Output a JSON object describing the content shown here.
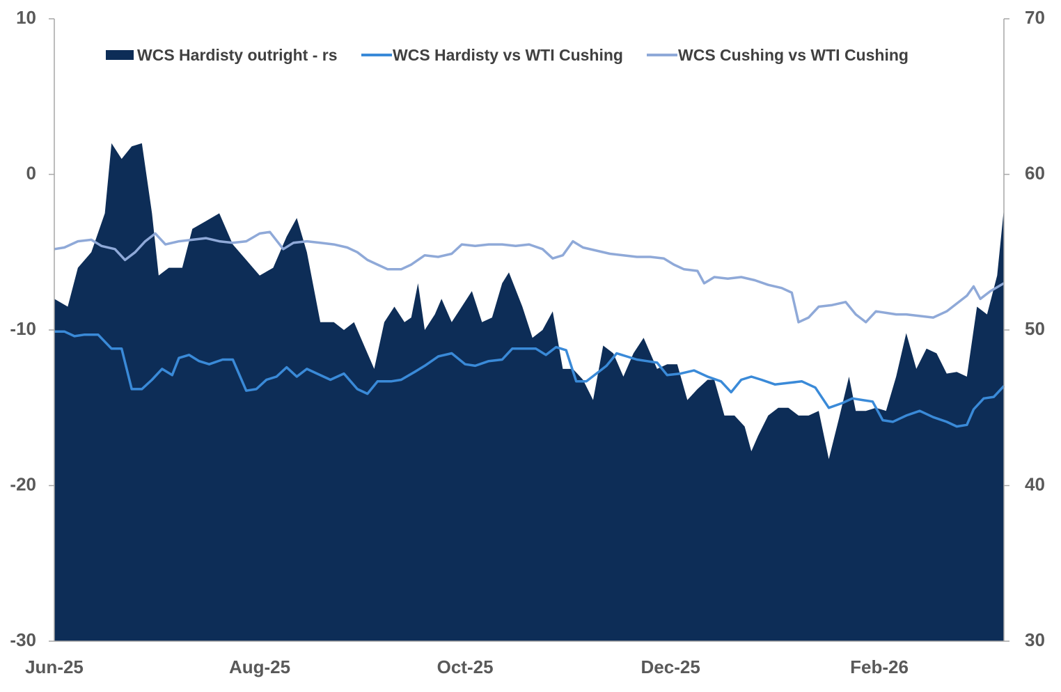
{
  "chart_data": {
    "type": "area+line",
    "legend_position": "top",
    "grid": false,
    "y_left": {
      "lim": [
        -30,
        10
      ],
      "ticks": [
        10,
        0,
        -10,
        -20,
        -30
      ]
    },
    "y_right": {
      "lim": [
        30,
        70
      ],
      "ticks": [
        70,
        60,
        50,
        40,
        30
      ]
    },
    "x_lim": [
      "2025-06-01",
      "2026-03-10"
    ],
    "x_ticks": [
      {
        "date": "2025-06-01",
        "label": "Jun-25"
      },
      {
        "date": "2025-08-01",
        "label": "Aug-25"
      },
      {
        "date": "2025-10-01",
        "label": "Oct-25"
      },
      {
        "date": "2025-12-01",
        "label": "Dec-25"
      },
      {
        "date": "2026-02-01",
        "label": "Feb-26"
      }
    ],
    "series": [
      {
        "name": "WCS Hardisty outright - rs",
        "kind": "area",
        "axis": "right",
        "color": "#0d2d57",
        "points": [
          [
            "2025-06-01",
            52
          ],
          [
            "2025-06-05",
            51.5
          ],
          [
            "2025-06-08",
            54
          ],
          [
            "2025-06-12",
            55
          ],
          [
            "2025-06-16",
            57.5
          ],
          [
            "2025-06-18",
            62
          ],
          [
            "2025-06-21",
            61
          ],
          [
            "2025-06-24",
            61.8
          ],
          [
            "2025-06-27",
            62
          ],
          [
            "2025-06-30",
            57.5
          ],
          [
            "2025-07-02",
            53.5
          ],
          [
            "2025-07-05",
            54
          ],
          [
            "2025-07-09",
            54
          ],
          [
            "2025-07-12",
            56.5
          ],
          [
            "2025-07-16",
            57
          ],
          [
            "2025-07-20",
            57.5
          ],
          [
            "2025-07-24",
            55.5
          ],
          [
            "2025-07-28",
            54.5
          ],
          [
            "2025-08-01",
            53.5
          ],
          [
            "2025-08-05",
            54
          ],
          [
            "2025-08-09",
            56
          ],
          [
            "2025-08-12",
            57.2
          ],
          [
            "2025-08-15",
            55
          ],
          [
            "2025-08-19",
            50.5
          ],
          [
            "2025-08-23",
            50.5
          ],
          [
            "2025-08-26",
            50
          ],
          [
            "2025-08-29",
            50.5
          ],
          [
            "2025-09-01",
            49
          ],
          [
            "2025-09-04",
            47.5
          ],
          [
            "2025-09-07",
            50.5
          ],
          [
            "2025-09-10",
            51.5
          ],
          [
            "2025-09-13",
            50.5
          ],
          [
            "2025-09-15",
            50.8
          ],
          [
            "2025-09-17",
            53
          ],
          [
            "2025-09-19",
            50
          ],
          [
            "2025-09-22",
            51
          ],
          [
            "2025-09-24",
            52
          ],
          [
            "2025-09-27",
            50.5
          ],
          [
            "2025-09-30",
            51.5
          ],
          [
            "2025-10-03",
            52.5
          ],
          [
            "2025-10-06",
            50.5
          ],
          [
            "2025-10-09",
            50.8
          ],
          [
            "2025-10-12",
            53
          ],
          [
            "2025-10-14",
            53.7
          ],
          [
            "2025-10-18",
            51.5
          ],
          [
            "2025-10-21",
            49.5
          ],
          [
            "2025-10-24",
            50
          ],
          [
            "2025-10-27",
            51.2
          ],
          [
            "2025-10-30",
            47.5
          ],
          [
            "2025-11-02",
            47.5
          ],
          [
            "2025-11-05",
            46.8
          ],
          [
            "2025-11-08",
            45.5
          ],
          [
            "2025-11-11",
            49
          ],
          [
            "2025-11-14",
            48.5
          ],
          [
            "2025-11-17",
            47
          ],
          [
            "2025-11-20",
            48.5
          ],
          [
            "2025-11-23",
            49.5
          ],
          [
            "2025-11-27",
            47.5
          ],
          [
            "2025-11-30",
            47.8
          ],
          [
            "2025-12-03",
            47.8
          ],
          [
            "2025-12-06",
            45.5
          ],
          [
            "2025-12-09",
            46.2
          ],
          [
            "2025-12-12",
            46.8
          ],
          [
            "2025-12-14",
            46.8
          ],
          [
            "2025-12-17",
            44.5
          ],
          [
            "2025-12-20",
            44.5
          ],
          [
            "2025-12-23",
            43.8
          ],
          [
            "2025-12-25",
            42.2
          ],
          [
            "2025-12-27",
            43.2
          ],
          [
            "2025-12-30",
            44.5
          ],
          [
            "2026-01-02",
            45
          ],
          [
            "2026-01-05",
            45
          ],
          [
            "2026-01-08",
            44.5
          ],
          [
            "2026-01-11",
            44.5
          ],
          [
            "2026-01-14",
            44.8
          ],
          [
            "2026-01-17",
            41.7
          ],
          [
            "2026-01-20",
            44.3
          ],
          [
            "2026-01-23",
            47
          ],
          [
            "2026-01-25",
            44.8
          ],
          [
            "2026-01-28",
            44.8
          ],
          [
            "2026-01-31",
            45
          ],
          [
            "2026-02-03",
            44.8
          ],
          [
            "2026-02-06",
            47
          ],
          [
            "2026-02-09",
            49.8
          ],
          [
            "2026-02-12",
            47.5
          ],
          [
            "2026-02-15",
            48.8
          ],
          [
            "2026-02-18",
            48.5
          ],
          [
            "2026-02-21",
            47.2
          ],
          [
            "2026-02-24",
            47.3
          ],
          [
            "2026-02-27",
            47
          ],
          [
            "2026-03-02",
            51.5
          ],
          [
            "2026-03-05",
            51
          ],
          [
            "2026-03-08",
            53.5
          ],
          [
            "2026-03-10",
            57.8
          ]
        ]
      },
      {
        "name": "WCS Hardisty vs WTI Cushing",
        "kind": "line",
        "axis": "left",
        "color": "#3a8ad8",
        "points": [
          [
            "2025-06-01",
            -10.1
          ],
          [
            "2025-06-04",
            -10.1
          ],
          [
            "2025-06-07",
            -10.4
          ],
          [
            "2025-06-10",
            -10.3
          ],
          [
            "2025-06-14",
            -10.3
          ],
          [
            "2025-06-18",
            -11.2
          ],
          [
            "2025-06-21",
            -11.2
          ],
          [
            "2025-06-24",
            -13.8
          ],
          [
            "2025-06-27",
            -13.8
          ],
          [
            "2025-06-30",
            -13.2
          ],
          [
            "2025-07-03",
            -12.5
          ],
          [
            "2025-07-06",
            -12.9
          ],
          [
            "2025-07-08",
            -11.8
          ],
          [
            "2025-07-11",
            -11.6
          ],
          [
            "2025-07-14",
            -12.0
          ],
          [
            "2025-07-17",
            -12.2
          ],
          [
            "2025-07-21",
            -11.9
          ],
          [
            "2025-07-24",
            -11.9
          ],
          [
            "2025-07-28",
            -13.9
          ],
          [
            "2025-07-31",
            -13.8
          ],
          [
            "2025-08-03",
            -13.2
          ],
          [
            "2025-08-06",
            -13.0
          ],
          [
            "2025-08-09",
            -12.4
          ],
          [
            "2025-08-12",
            -13.0
          ],
          [
            "2025-08-15",
            -12.5
          ],
          [
            "2025-08-18",
            -12.8
          ],
          [
            "2025-08-22",
            -13.2
          ],
          [
            "2025-08-26",
            -12.8
          ],
          [
            "2025-08-30",
            -13.8
          ],
          [
            "2025-09-02",
            -14.1
          ],
          [
            "2025-09-05",
            -13.3
          ],
          [
            "2025-09-09",
            -13.3
          ],
          [
            "2025-09-12",
            -13.2
          ],
          [
            "2025-09-16",
            -12.7
          ],
          [
            "2025-09-19",
            -12.3
          ],
          [
            "2025-09-23",
            -11.7
          ],
          [
            "2025-09-27",
            -11.5
          ],
          [
            "2025-10-01",
            -12.2
          ],
          [
            "2025-10-04",
            -12.3
          ],
          [
            "2025-10-08",
            -12.0
          ],
          [
            "2025-10-12",
            -11.9
          ],
          [
            "2025-10-15",
            -11.2
          ],
          [
            "2025-10-18",
            -11.2
          ],
          [
            "2025-10-22",
            -11.2
          ],
          [
            "2025-10-25",
            -11.6
          ],
          [
            "2025-10-28",
            -11.1
          ],
          [
            "2025-10-31",
            -11.3
          ],
          [
            "2025-11-03",
            -13.3
          ],
          [
            "2025-11-06",
            -13.3
          ],
          [
            "2025-11-09",
            -12.8
          ],
          [
            "2025-11-12",
            -12.3
          ],
          [
            "2025-11-15",
            -11.5
          ],
          [
            "2025-11-18",
            -11.7
          ],
          [
            "2025-11-21",
            -11.9
          ],
          [
            "2025-11-24",
            -12.0
          ],
          [
            "2025-11-27",
            -12.1
          ],
          [
            "2025-11-30",
            -12.9
          ],
          [
            "2025-12-04",
            -12.8
          ],
          [
            "2025-12-08",
            -12.6
          ],
          [
            "2025-12-12",
            -13.0
          ],
          [
            "2025-12-16",
            -13.3
          ],
          [
            "2025-12-19",
            -14.0
          ],
          [
            "2025-12-22",
            -13.2
          ],
          [
            "2025-12-25",
            -13.0
          ],
          [
            "2025-12-28",
            -13.2
          ],
          [
            "2026-01-01",
            -13.5
          ],
          [
            "2026-01-05",
            -13.4
          ],
          [
            "2026-01-09",
            -13.3
          ],
          [
            "2026-01-13",
            -13.7
          ],
          [
            "2026-01-17",
            -15.0
          ],
          [
            "2026-01-21",
            -14.7
          ],
          [
            "2026-01-24",
            -14.4
          ],
          [
            "2026-01-27",
            -14.5
          ],
          [
            "2026-01-30",
            -14.6
          ],
          [
            "2026-02-02",
            -15.8
          ],
          [
            "2026-02-05",
            -15.9
          ],
          [
            "2026-02-09",
            -15.5
          ],
          [
            "2026-02-13",
            -15.2
          ],
          [
            "2026-02-17",
            -15.6
          ],
          [
            "2026-02-21",
            -15.9
          ],
          [
            "2026-02-24",
            -16.2
          ],
          [
            "2026-02-27",
            -16.1
          ],
          [
            "2026-03-01",
            -15.1
          ],
          [
            "2026-03-04",
            -14.4
          ],
          [
            "2026-03-07",
            -14.3
          ],
          [
            "2026-03-10",
            -13.6
          ]
        ]
      },
      {
        "name": "WCS Cushing vs WTI Cushing",
        "kind": "line",
        "axis": "left",
        "color": "#8fa9d8",
        "points": [
          [
            "2025-06-01",
            -4.8
          ],
          [
            "2025-06-04",
            -4.7
          ],
          [
            "2025-06-08",
            -4.3
          ],
          [
            "2025-06-12",
            -4.2
          ],
          [
            "2025-06-15",
            -4.6
          ],
          [
            "2025-06-19",
            -4.8
          ],
          [
            "2025-06-22",
            -5.5
          ],
          [
            "2025-06-25",
            -5.0
          ],
          [
            "2025-06-28",
            -4.3
          ],
          [
            "2025-07-01",
            -3.8
          ],
          [
            "2025-07-04",
            -4.5
          ],
          [
            "2025-07-08",
            -4.3
          ],
          [
            "2025-07-12",
            -4.2
          ],
          [
            "2025-07-16",
            -4.1
          ],
          [
            "2025-07-20",
            -4.3
          ],
          [
            "2025-07-24",
            -4.4
          ],
          [
            "2025-07-28",
            -4.3
          ],
          [
            "2025-08-01",
            -3.8
          ],
          [
            "2025-08-04",
            -3.7
          ],
          [
            "2025-08-08",
            -4.8
          ],
          [
            "2025-08-11",
            -4.4
          ],
          [
            "2025-08-15",
            -4.3
          ],
          [
            "2025-08-19",
            -4.4
          ],
          [
            "2025-08-23",
            -4.5
          ],
          [
            "2025-08-27",
            -4.7
          ],
          [
            "2025-08-30",
            -5.0
          ],
          [
            "2025-09-02",
            -5.5
          ],
          [
            "2025-09-05",
            -5.8
          ],
          [
            "2025-09-08",
            -6.1
          ],
          [
            "2025-09-12",
            -6.1
          ],
          [
            "2025-09-15",
            -5.8
          ],
          [
            "2025-09-19",
            -5.2
          ],
          [
            "2025-09-23",
            -5.3
          ],
          [
            "2025-09-27",
            -5.1
          ],
          [
            "2025-09-30",
            -4.5
          ],
          [
            "2025-10-04",
            -4.6
          ],
          [
            "2025-10-08",
            -4.5
          ],
          [
            "2025-10-12",
            -4.5
          ],
          [
            "2025-10-16",
            -4.6
          ],
          [
            "2025-10-20",
            -4.5
          ],
          [
            "2025-10-24",
            -4.8
          ],
          [
            "2025-10-27",
            -5.4
          ],
          [
            "2025-10-30",
            -5.2
          ],
          [
            "2025-11-02",
            -4.3
          ],
          [
            "2025-11-05",
            -4.7
          ],
          [
            "2025-11-09",
            -4.9
          ],
          [
            "2025-11-13",
            -5.1
          ],
          [
            "2025-11-17",
            -5.2
          ],
          [
            "2025-11-21",
            -5.3
          ],
          [
            "2025-11-25",
            -5.3
          ],
          [
            "2025-11-29",
            -5.4
          ],
          [
            "2025-12-02",
            -5.8
          ],
          [
            "2025-12-05",
            -6.1
          ],
          [
            "2025-12-09",
            -6.2
          ],
          [
            "2025-12-11",
            -7.0
          ],
          [
            "2025-12-14",
            -6.6
          ],
          [
            "2025-12-18",
            -6.7
          ],
          [
            "2025-12-22",
            -6.6
          ],
          [
            "2025-12-26",
            -6.8
          ],
          [
            "2025-12-30",
            -7.1
          ],
          [
            "2026-01-03",
            -7.3
          ],
          [
            "2026-01-06",
            -7.6
          ],
          [
            "2026-01-08",
            -9.5
          ],
          [
            "2026-01-11",
            -9.2
          ],
          [
            "2026-01-14",
            -8.5
          ],
          [
            "2026-01-18",
            -8.4
          ],
          [
            "2026-01-22",
            -8.2
          ],
          [
            "2026-01-25",
            -9.0
          ],
          [
            "2026-01-28",
            -9.5
          ],
          [
            "2026-01-31",
            -8.8
          ],
          [
            "2026-02-03",
            -8.9
          ],
          [
            "2026-02-06",
            -9.0
          ],
          [
            "2026-02-09",
            -9.0
          ],
          [
            "2026-02-13",
            -9.1
          ],
          [
            "2026-02-17",
            -9.2
          ],
          [
            "2026-02-21",
            -8.8
          ],
          [
            "2026-02-24",
            -8.3
          ],
          [
            "2026-02-27",
            -7.8
          ],
          [
            "2026-03-01",
            -7.2
          ],
          [
            "2026-03-03",
            -8.0
          ],
          [
            "2026-03-06",
            -7.5
          ],
          [
            "2026-03-10",
            -7.0
          ]
        ]
      }
    ]
  }
}
